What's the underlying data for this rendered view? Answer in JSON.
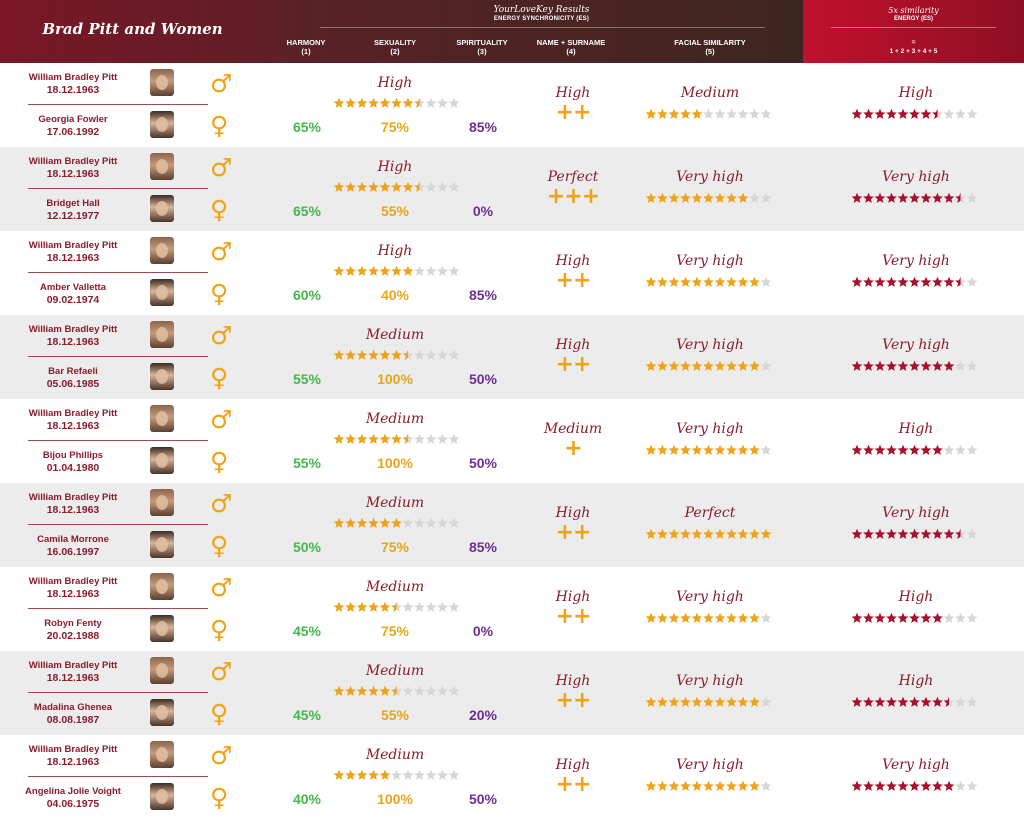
{
  "header": {
    "title": "Brad Pitt and Women",
    "results_title": "YourLoveKey Results",
    "results_subtitle": "ENERGY SYNCHRONICITY (ES)",
    "columns": [
      {
        "label": "HARMONY",
        "num": "(1)"
      },
      {
        "label": "SEXUALITY",
        "num": "(2)"
      },
      {
        "label": "SPIRITUALITY",
        "num": "(3)"
      },
      {
        "label": "NAME + SURNAME",
        "num": "(4)"
      },
      {
        "label": "FACIAL SIMILARITY",
        "num": "(5)"
      }
    ],
    "similarity_title": "5x similarity",
    "similarity_subtitle": "ENERGY (ES)",
    "similarity_eq": "=",
    "similarity_formula": "1 + 2 + 3 + 4 + 5"
  },
  "colors": {
    "maroon": "#8a1c2b",
    "gold": "#f0a318",
    "green": "#43b749",
    "purple": "#6b3095",
    "star_gold": "#f0a318",
    "star_red": "#a8102b",
    "star_empty": "#d6d6d6"
  },
  "icons": {
    "male": "male-symbol-icon",
    "female": "female-symbol-icon"
  },
  "rows": [
    {
      "man": "William Bradley Pitt",
      "man_date": "18.12.1963",
      "woman": "Georgia Fowler",
      "woman_date": "17.06.1992",
      "es_level": "High",
      "es_stars": 7.5,
      "harmony": "65%",
      "sexuality": "75%",
      "spirituality": "85%",
      "name_level": "High",
      "name_plus": "++",
      "face_level": "Medium",
      "face_stars": 5,
      "sim_level": "High",
      "sim_stars": 7.5
    },
    {
      "man": "William Bradley Pitt",
      "man_date": "18.12.1963",
      "woman": "Bridget Hall",
      "woman_date": "12.12.1977",
      "es_level": "High",
      "es_stars": 7.5,
      "harmony": "65%",
      "sexuality": "55%",
      "spirituality": "0%",
      "name_level": "Perfect",
      "name_plus": "+++",
      "face_level": "Very high",
      "face_stars": 9,
      "sim_level": "Very high",
      "sim_stars": 9.5
    },
    {
      "man": "William Bradley Pitt",
      "man_date": "18.12.1963",
      "woman": "Amber Valletta",
      "woman_date": "09.02.1974",
      "es_level": "High",
      "es_stars": 7,
      "harmony": "60%",
      "sexuality": "40%",
      "spirituality": "85%",
      "name_level": "High",
      "name_plus": "++",
      "face_level": "Very high",
      "face_stars": 10,
      "sim_level": "Very high",
      "sim_stars": 9.5
    },
    {
      "man": "William Bradley Pitt",
      "man_date": "18.12.1963",
      "woman": "Bar Refaeli",
      "woman_date": "05.06.1985",
      "es_level": "Medium",
      "es_stars": 6.5,
      "harmony": "55%",
      "sexuality": "100%",
      "spirituality": "50%",
      "name_level": "High",
      "name_plus": "++",
      "face_level": "Very high",
      "face_stars": 10,
      "sim_level": "Very high",
      "sim_stars": 9
    },
    {
      "man": "William Bradley Pitt",
      "man_date": "18.12.1963",
      "woman": "Bijou Phillips",
      "woman_date": "01.04.1980",
      "es_level": "Medium",
      "es_stars": 6.5,
      "harmony": "55%",
      "sexuality": "100%",
      "spirituality": "50%",
      "name_level": "Medium",
      "name_plus": "+",
      "face_level": "Very high",
      "face_stars": 10,
      "sim_level": "High",
      "sim_stars": 8
    },
    {
      "man": "William Bradley Pitt",
      "man_date": "18.12.1963",
      "woman": "Camila Morrone",
      "woman_date": "16.06.1997",
      "es_level": "Medium",
      "es_stars": 6,
      "harmony": "50%",
      "sexuality": "75%",
      "spirituality": "85%",
      "name_level": "High",
      "name_plus": "++",
      "face_level": "Perfect",
      "face_stars": 11,
      "sim_level": "Very high",
      "sim_stars": 9.5
    },
    {
      "man": "William Bradley Pitt",
      "man_date": "18.12.1963",
      "woman": "Robyn Fenty",
      "woman_date": "20.02.1988",
      "es_level": "Medium",
      "es_stars": 5.5,
      "harmony": "45%",
      "sexuality": "75%",
      "spirituality": "0%",
      "name_level": "High",
      "name_plus": "++",
      "face_level": "Very high",
      "face_stars": 10,
      "sim_level": "High",
      "sim_stars": 8
    },
    {
      "man": "William Bradley Pitt",
      "man_date": "18.12.1963",
      "woman": "Madalina Ghenea",
      "woman_date": "08.08.1987",
      "es_level": "Medium",
      "es_stars": 5.5,
      "harmony": "45%",
      "sexuality": "55%",
      "spirituality": "20%",
      "name_level": "High",
      "name_plus": "++",
      "face_level": "Very high",
      "face_stars": 10,
      "sim_level": "High",
      "sim_stars": 8.5
    },
    {
      "man": "William Bradley Pitt",
      "man_date": "18.12.1963",
      "woman": "Angelina Jolie Voight",
      "woman_date": "04.06.1975",
      "es_level": "Medium",
      "es_stars": 5,
      "harmony": "40%",
      "sexuality": "100%",
      "spirituality": "50%",
      "name_level": "High",
      "name_plus": "++",
      "face_level": "Very high",
      "face_stars": 10,
      "sim_level": "Very high",
      "sim_stars": 9
    }
  ]
}
